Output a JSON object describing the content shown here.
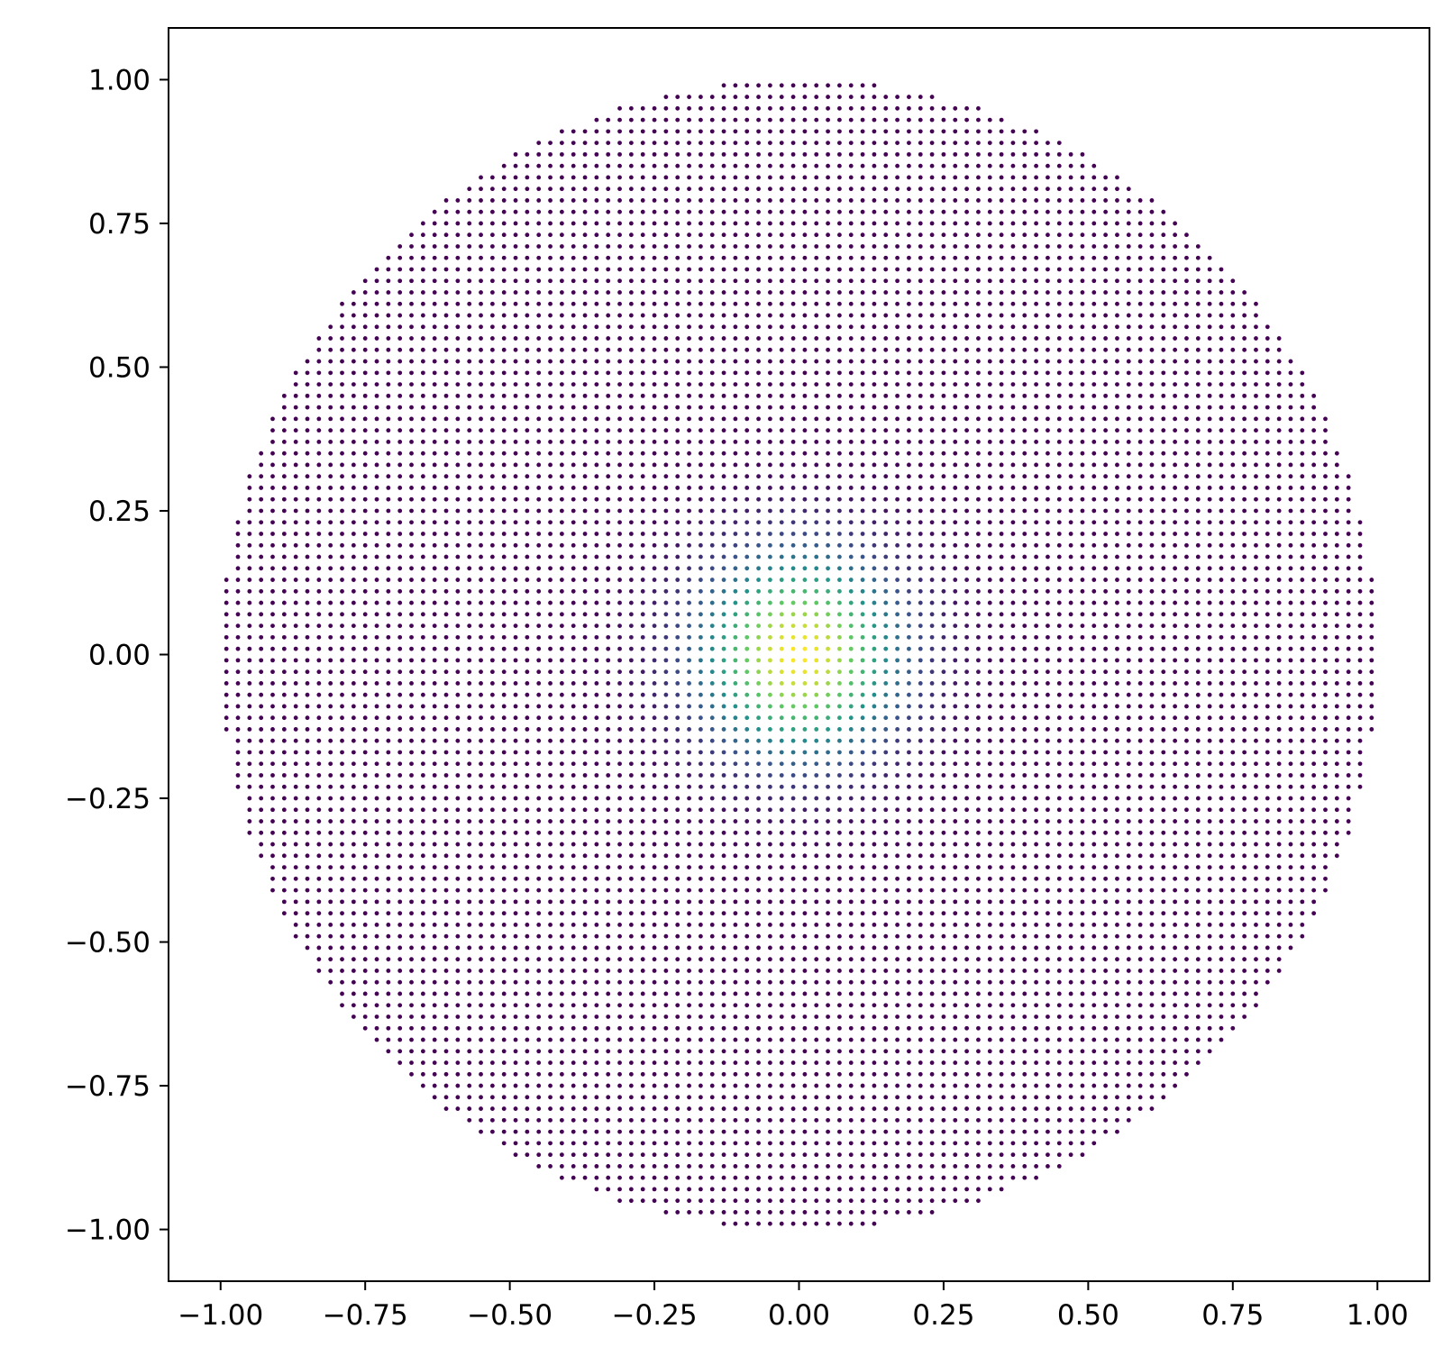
{
  "chart_data": {
    "type": "scatter",
    "title": "",
    "xlabel": "",
    "ylabel": "",
    "xlim": [
      -1.09,
      1.09
    ],
    "ylim": [
      -1.09,
      1.09
    ],
    "grid": false,
    "legend": "none",
    "x_ticks": [
      "−1.00",
      "−0.75",
      "−0.50",
      "−0.25",
      "0.00",
      "0.25",
      "0.50",
      "0.75",
      "1.00"
    ],
    "x_tick_values": [
      -1.0,
      -0.75,
      -0.5,
      -0.25,
      0.0,
      0.25,
      0.5,
      0.75,
      1.0
    ],
    "y_ticks": [
      "1.00",
      "0.75",
      "0.50",
      "0.25",
      "0.00",
      "−0.25",
      "−0.50",
      "−0.75",
      "−1.00"
    ],
    "y_tick_values": [
      1.0,
      0.75,
      0.5,
      0.25,
      0.0,
      -0.25,
      -0.5,
      -0.75,
      -1.0
    ],
    "point_grid": {
      "x_start": -0.99,
      "x_end": 0.99,
      "x_step": 0.02,
      "y_start": -0.99,
      "y_end": 0.99,
      "y_step": 0.02,
      "domain": "x^2 + y^2 <= 1"
    },
    "color_value": "exp(-(x^2 + y^2) / 0.03)",
    "colormap": "viridis",
    "colormap_stops": [
      "#440154",
      "#3b528b",
      "#21918c",
      "#5ec962",
      "#fde725"
    ]
  }
}
